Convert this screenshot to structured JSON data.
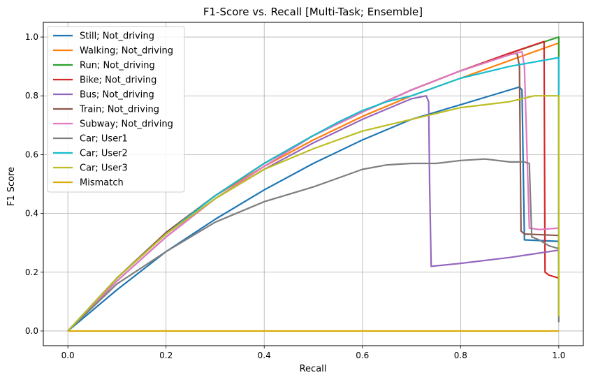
{
  "chart_data": {
    "type": "line",
    "title": "F1-Score vs. Recall [Multi-Task; Ensemble]",
    "xlabel": "Recall",
    "ylabel": "F1 Score",
    "xlim": [
      -0.05,
      1.05
    ],
    "ylim": [
      -0.05,
      1.05
    ],
    "xticks": [
      0.0,
      0.2,
      0.4,
      0.6,
      0.8,
      1.0
    ],
    "xtick_labels": [
      "0.0",
      "0.2",
      "0.4",
      "0.6",
      "0.8",
      "1.0"
    ],
    "yticks": [
      0.0,
      0.2,
      0.4,
      0.6,
      0.8,
      1.0
    ],
    "ytick_labels": [
      "0.0",
      "0.2",
      "0.4",
      "0.6",
      "0.8",
      "1.0"
    ],
    "grid": true,
    "legend_position": "top-left",
    "series": [
      {
        "name": "Still; Not_driving",
        "color": "#1f77b4",
        "points": [
          [
            0,
            0
          ],
          [
            0.1,
            0.14
          ],
          [
            0.2,
            0.27
          ],
          [
            0.3,
            0.38
          ],
          [
            0.4,
            0.48
          ],
          [
            0.5,
            0.57
          ],
          [
            0.6,
            0.65
          ],
          [
            0.7,
            0.72
          ],
          [
            0.8,
            0.77
          ],
          [
            0.88,
            0.81
          ],
          [
            0.92,
            0.83
          ],
          [
            0.925,
            0.82
          ],
          [
            0.93,
            0.31
          ],
          [
            1.0,
            0.305
          ],
          [
            1.0,
            0.03
          ]
        ]
      },
      {
        "name": "Walking; Not_driving",
        "color": "#ff7f0e",
        "points": [
          [
            0,
            0
          ],
          [
            0.1,
            0.18
          ],
          [
            0.2,
            0.33
          ],
          [
            0.3,
            0.46
          ],
          [
            0.4,
            0.56
          ],
          [
            0.5,
            0.65
          ],
          [
            0.6,
            0.73
          ],
          [
            0.7,
            0.8
          ],
          [
            0.8,
            0.86
          ],
          [
            0.9,
            0.92
          ],
          [
            1.0,
            0.98
          ],
          [
            1.0,
            0.05
          ]
        ]
      },
      {
        "name": "Run; Not_driving",
        "color": "#2ca02c",
        "points": [
          [
            0,
            0
          ],
          [
            0.1,
            0.18
          ],
          [
            0.2,
            0.335
          ],
          [
            0.3,
            0.46
          ],
          [
            0.4,
            0.57
          ],
          [
            0.5,
            0.665
          ],
          [
            0.6,
            0.745
          ],
          [
            0.7,
            0.82
          ],
          [
            0.8,
            0.885
          ],
          [
            0.9,
            0.945
          ],
          [
            1.0,
            1.0
          ],
          [
            1.0,
            0.05
          ]
        ]
      },
      {
        "name": "Bike; Not_driving",
        "color": "#d62728",
        "points": [
          [
            0,
            0
          ],
          [
            0.1,
            0.18
          ],
          [
            0.2,
            0.335
          ],
          [
            0.3,
            0.46
          ],
          [
            0.4,
            0.57
          ],
          [
            0.5,
            0.665
          ],
          [
            0.6,
            0.745
          ],
          [
            0.7,
            0.82
          ],
          [
            0.8,
            0.885
          ],
          [
            0.9,
            0.945
          ],
          [
            0.97,
            0.985
          ],
          [
            0.972,
            0.2
          ],
          [
            0.98,
            0.19
          ],
          [
            1.0,
            0.18
          ],
          [
            1.0,
            0.05
          ]
        ]
      },
      {
        "name": "Bus; Not_driving",
        "color": "#9467bd",
        "points": [
          [
            0,
            0
          ],
          [
            0.1,
            0.17
          ],
          [
            0.2,
            0.32
          ],
          [
            0.3,
            0.45
          ],
          [
            0.4,
            0.55
          ],
          [
            0.5,
            0.64
          ],
          [
            0.6,
            0.72
          ],
          [
            0.7,
            0.79
          ],
          [
            0.73,
            0.8
          ],
          [
            0.735,
            0.78
          ],
          [
            0.737,
            0.5
          ],
          [
            0.74,
            0.22
          ],
          [
            0.8,
            0.23
          ],
          [
            0.9,
            0.25
          ],
          [
            1.0,
            0.275
          ]
        ]
      },
      {
        "name": "Train; Not_driving",
        "color": "#8c564b",
        "points": [
          [
            0,
            0
          ],
          [
            0.1,
            0.18
          ],
          [
            0.2,
            0.335
          ],
          [
            0.3,
            0.46
          ],
          [
            0.4,
            0.57
          ],
          [
            0.5,
            0.665
          ],
          [
            0.6,
            0.745
          ],
          [
            0.7,
            0.82
          ],
          [
            0.8,
            0.885
          ],
          [
            0.9,
            0.94
          ],
          [
            0.915,
            0.945
          ],
          [
            0.92,
            0.9
          ],
          [
            0.923,
            0.34
          ],
          [
            0.93,
            0.33
          ],
          [
            1.0,
            0.325
          ]
        ]
      },
      {
        "name": "Subway; Not_driving",
        "color": "#e377c2",
        "points": [
          [
            0,
            0
          ],
          [
            0.1,
            0.17
          ],
          [
            0.2,
            0.32
          ],
          [
            0.3,
            0.45
          ],
          [
            0.4,
            0.56
          ],
          [
            0.5,
            0.665
          ],
          [
            0.6,
            0.745
          ],
          [
            0.7,
            0.82
          ],
          [
            0.8,
            0.885
          ],
          [
            0.9,
            0.94
          ],
          [
            0.925,
            0.95
          ],
          [
            0.93,
            0.9
          ],
          [
            0.94,
            0.35
          ],
          [
            0.96,
            0.345
          ],
          [
            1.0,
            0.35
          ]
        ]
      },
      {
        "name": "Car; User1",
        "color": "#7f7f7f",
        "points": [
          [
            0,
            0
          ],
          [
            0.1,
            0.16
          ],
          [
            0.2,
            0.27
          ],
          [
            0.3,
            0.37
          ],
          [
            0.4,
            0.44
          ],
          [
            0.5,
            0.49
          ],
          [
            0.55,
            0.52
          ],
          [
            0.6,
            0.55
          ],
          [
            0.65,
            0.565
          ],
          [
            0.7,
            0.57
          ],
          [
            0.75,
            0.57
          ],
          [
            0.8,
            0.58
          ],
          [
            0.85,
            0.585
          ],
          [
            0.9,
            0.575
          ],
          [
            0.93,
            0.575
          ],
          [
            0.94,
            0.57
          ],
          [
            0.945,
            0.32
          ],
          [
            0.96,
            0.31
          ],
          [
            0.98,
            0.29
          ],
          [
            1.0,
            0.28
          ],
          [
            1.0,
            0.03
          ]
        ]
      },
      {
        "name": "Car; User2",
        "color": "#17becf",
        "points": [
          [
            0,
            0
          ],
          [
            0.1,
            0.18
          ],
          [
            0.2,
            0.33
          ],
          [
            0.3,
            0.46
          ],
          [
            0.4,
            0.57
          ],
          [
            0.5,
            0.665
          ],
          [
            0.55,
            0.71
          ],
          [
            0.6,
            0.75
          ],
          [
            0.65,
            0.78
          ],
          [
            0.7,
            0.8
          ],
          [
            0.8,
            0.86
          ],
          [
            0.9,
            0.9
          ],
          [
            1.0,
            0.93
          ],
          [
            1.0,
            0.05
          ]
        ]
      },
      {
        "name": "Car; User3",
        "color": "#bcbd22",
        "points": [
          [
            0,
            0
          ],
          [
            0.1,
            0.18
          ],
          [
            0.2,
            0.33
          ],
          [
            0.3,
            0.45
          ],
          [
            0.4,
            0.55
          ],
          [
            0.5,
            0.62
          ],
          [
            0.6,
            0.68
          ],
          [
            0.7,
            0.72
          ],
          [
            0.8,
            0.76
          ],
          [
            0.9,
            0.78
          ],
          [
            0.95,
            0.8
          ],
          [
            1.0,
            0.8
          ],
          [
            1.0,
            0.05
          ]
        ]
      },
      {
        "name": "Mismatch",
        "color": "#dbab0a",
        "points": [
          [
            0,
            0
          ],
          [
            1.0,
            0.0
          ]
        ]
      }
    ]
  }
}
